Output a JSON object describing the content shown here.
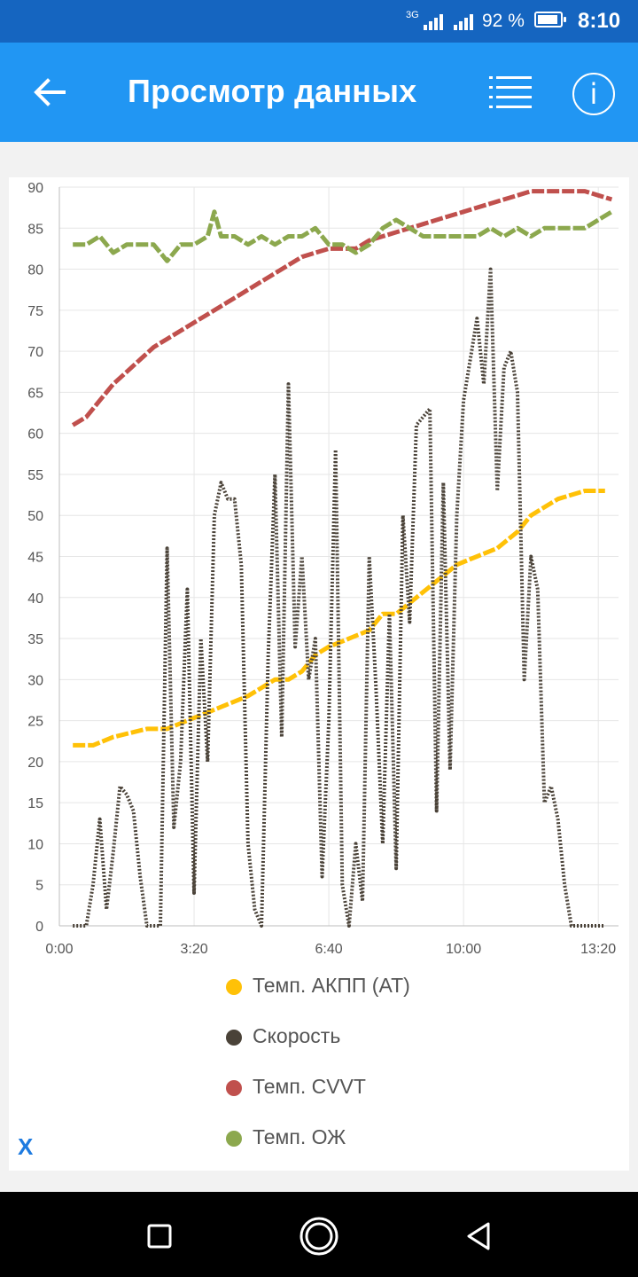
{
  "status_bar": {
    "network": "3G",
    "battery_percent": "92 %",
    "battery_level": 0.92,
    "time": "8:10"
  },
  "app_bar": {
    "title": "Просмотр данных",
    "back_icon": "arrow-left-icon",
    "list_icon": "list-icon",
    "info_icon": "info-icon",
    "info_label": "i",
    "background": "#2196f3"
  },
  "chart_data": {
    "type": "line",
    "x_unit": "seconds",
    "xlim": [
      0,
      830
    ],
    "ylim": [
      0,
      90
    ],
    "y_ticks": [
      "0",
      "5",
      "10",
      "15",
      "20",
      "25",
      "30",
      "35",
      "40",
      "45",
      "50",
      "55",
      "60",
      "65",
      "70",
      "75",
      "80",
      "85",
      "90"
    ],
    "x_ticks": [
      "0:00",
      "3:20",
      "6:40",
      "10:00",
      "13:20"
    ],
    "x_tick_values": [
      0,
      200,
      400,
      600,
      800
    ],
    "grid": true,
    "legend_position": "bottom",
    "series": [
      {
        "name": "Темп. АКПП (AT)",
        "color": "#ffc107",
        "x": [
          20,
          50,
          80,
          130,
          160,
          190,
          220,
          250,
          280,
          300,
          320,
          340,
          360,
          380,
          400,
          430,
          460,
          480,
          500,
          530,
          560,
          590,
          620,
          650,
          680,
          700,
          740,
          780,
          810
        ],
        "y": [
          22,
          22,
          23,
          24,
          24,
          25,
          26,
          27,
          28,
          29,
          30,
          30,
          31,
          33,
          34,
          35,
          36,
          38,
          38,
          40,
          42,
          44,
          45,
          46,
          48,
          50,
          52,
          53,
          53
        ]
      },
      {
        "name": "Скорость",
        "color": "#4a4238",
        "x": [
          20,
          40,
          50,
          60,
          70,
          80,
          90,
          100,
          110,
          120,
          130,
          140,
          150,
          160,
          170,
          180,
          190,
          200,
          210,
          220,
          230,
          240,
          250,
          260,
          270,
          280,
          290,
          300,
          310,
          320,
          330,
          340,
          350,
          360,
          370,
          380,
          390,
          400,
          410,
          420,
          430,
          440,
          450,
          460,
          470,
          480,
          490,
          500,
          510,
          520,
          530,
          540,
          550,
          560,
          570,
          580,
          590,
          600,
          610,
          620,
          630,
          640,
          650,
          660,
          670,
          680,
          690,
          700,
          710,
          720,
          730,
          740,
          750,
          760,
          770,
          780,
          790,
          800,
          810
        ],
        "y": [
          0,
          0,
          5,
          13,
          2,
          9,
          17,
          16,
          14,
          6,
          0,
          0,
          0,
          46,
          12,
          20,
          41,
          4,
          35,
          20,
          50,
          54,
          52,
          52,
          44,
          10,
          2,
          0,
          33,
          55,
          23,
          66,
          34,
          45,
          30,
          35,
          6,
          25,
          58,
          5,
          0,
          10,
          3,
          45,
          29,
          10,
          38,
          7,
          50,
          37,
          61,
          62,
          63,
          14,
          54,
          19,
          50,
          64,
          69,
          74,
          66,
          80,
          53,
          68,
          70,
          65,
          30,
          45,
          41,
          15,
          17,
          13,
          5,
          0,
          0,
          0,
          0,
          0,
          0
        ]
      },
      {
        "name": "Темп. CVVT",
        "color": "#c0504d",
        "x": [
          20,
          40,
          60,
          80,
          100,
          120,
          140,
          160,
          180,
          200,
          220,
          240,
          260,
          280,
          300,
          320,
          340,
          360,
          380,
          400,
          420,
          440,
          460,
          480,
          500,
          520,
          540,
          560,
          580,
          600,
          620,
          640,
          660,
          680,
          700,
          720,
          740,
          760,
          780,
          800,
          820
        ],
        "y": [
          61,
          62,
          64,
          66,
          67.5,
          69,
          70.5,
          71.5,
          72.5,
          73.5,
          74.5,
          75.5,
          76.5,
          77.5,
          78.5,
          79.5,
          80.5,
          81.5,
          82,
          82.5,
          82.5,
          82.5,
          83.5,
          84,
          84.5,
          85,
          85.5,
          86,
          86.5,
          87,
          87.5,
          88,
          88.5,
          89,
          89.5,
          89.5,
          89.5,
          89.5,
          89.5,
          89,
          88.5
        ]
      },
      {
        "name": "Темп. ОЖ",
        "color": "#8ca84e",
        "x": [
          20,
          40,
          60,
          80,
          100,
          120,
          140,
          150,
          160,
          180,
          200,
          220,
          230,
          240,
          260,
          280,
          300,
          320,
          340,
          360,
          380,
          400,
          420,
          440,
          460,
          480,
          500,
          520,
          540,
          560,
          580,
          600,
          620,
          640,
          660,
          680,
          700,
          720,
          740,
          760,
          780,
          800,
          820
        ],
        "y": [
          83,
          83,
          84,
          82,
          83,
          83,
          83,
          82,
          81,
          83,
          83,
          84,
          87,
          84,
          84,
          83,
          84,
          83,
          84,
          84,
          85,
          83,
          83,
          82,
          83,
          85,
          86,
          85,
          84,
          84,
          84,
          84,
          84,
          85,
          84,
          85,
          84,
          85,
          85,
          85,
          85,
          86,
          87
        ]
      }
    ]
  },
  "close_label": "X",
  "nav_bar": {
    "recents_icon": "square-recents-icon",
    "home_icon": "circle-home-icon",
    "back_icon": "triangle-back-icon"
  }
}
